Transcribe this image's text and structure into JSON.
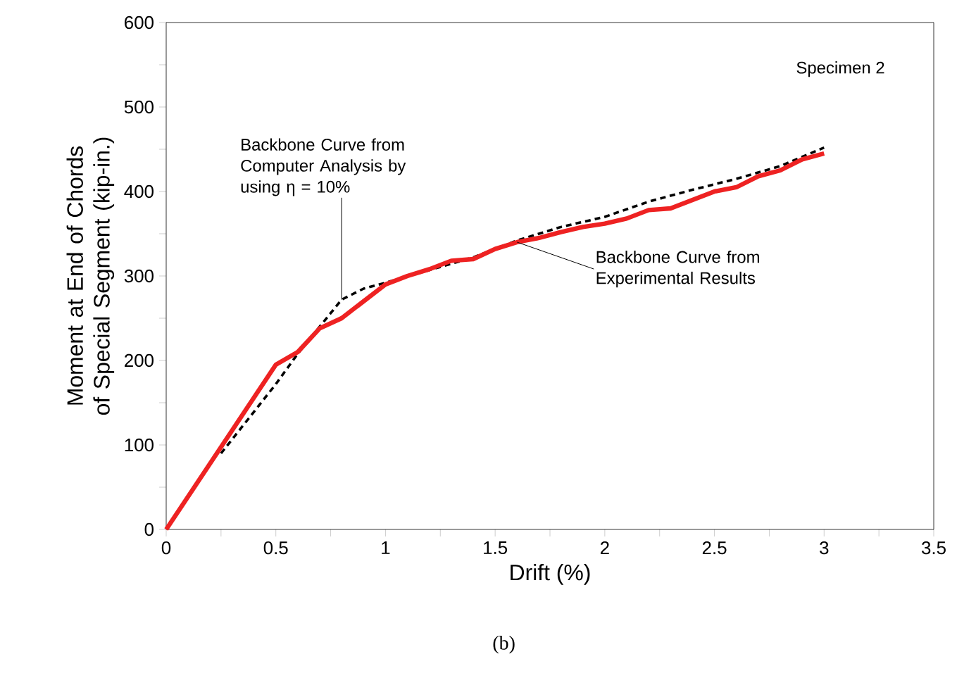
{
  "chart_data": {
    "type": "line",
    "xlabel": "Drift (%)",
    "ylabel": "Moment at End of Chords of Special Segment (kip-in.)",
    "xlim": [
      0,
      3.5
    ],
    "ylim": [
      0,
      600
    ],
    "xticks": [
      0,
      {
        "value": 0.25,
        "label": null
      },
      0.5,
      {
        "value": 0.75,
        "label": null
      },
      1,
      {
        "value": 1.25,
        "label": null
      },
      1.5,
      {
        "value": 1.75,
        "label": null
      },
      2,
      {
        "value": 2.25,
        "label": null
      },
      2.5,
      {
        "value": 2.75,
        "label": null
      },
      3,
      {
        "value": 3.25,
        "label": null
      },
      3.5
    ],
    "yticks": [
      0,
      {
        "value": 50,
        "label": null
      },
      100,
      {
        "value": 150,
        "label": null
      },
      200,
      {
        "value": 250,
        "label": null
      },
      300,
      {
        "value": 350,
        "label": null
      },
      400,
      {
        "value": 450,
        "label": null
      },
      500,
      {
        "value": 550,
        "label": null
      },
      600
    ],
    "series": [
      {
        "color": "#000000",
        "line_style": "dashed",
        "x": [
          0.25,
          0.5,
          0.6,
          0.7,
          0.8,
          0.9,
          1.0,
          1.4,
          1.6,
          1.8,
          2.0,
          2.2,
          2.4,
          2.6,
          2.8,
          3.0
        ],
        "values": [
          90,
          172,
          208,
          240,
          272,
          285,
          292,
          322,
          342,
          358,
          370,
          388,
          402,
          415,
          430,
          452
        ]
      },
      {
        "color": "#ee2222",
        "line_style": "solid",
        "x": [
          0,
          0.5,
          0.6,
          0.7,
          0.8,
          1.0,
          1.1,
          1.2,
          1.3,
          1.4,
          1.5,
          1.6,
          1.7,
          1.8,
          1.9,
          2.0,
          2.1,
          2.2,
          2.3,
          2.4,
          2.5,
          2.6,
          2.7,
          2.8,
          2.9,
          3.0
        ],
        "values": [
          0,
          195,
          210,
          238,
          250,
          290,
          300,
          308,
          318,
          320,
          332,
          340,
          345,
          352,
          358,
          362,
          368,
          378,
          380,
          390,
          400,
          405,
          418,
          425,
          438,
          445
        ]
      }
    ],
    "annotations": [
      {
        "text": "Backbone Curve from Computer Analysis by using η = 10%",
        "x": 0.8,
        "y": 272
      },
      {
        "text": "Backbone Curve from Experimental Results",
        "x": 1.6,
        "y": 340
      },
      "Specimen 2",
      "(b)"
    ]
  }
}
